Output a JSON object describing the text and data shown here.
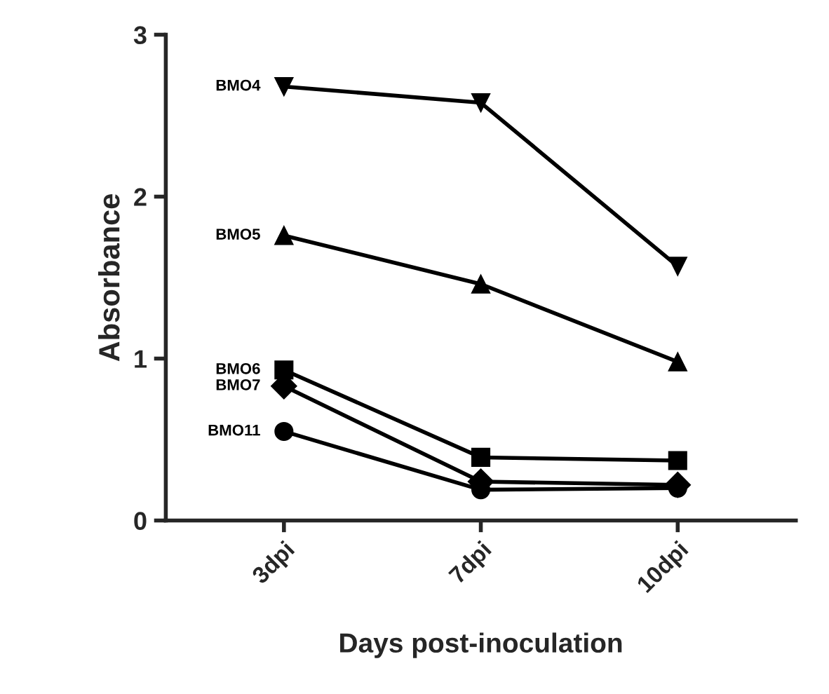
{
  "chart_data": {
    "type": "line",
    "xlabel": "Days post-inoculation",
    "ylabel": "Absorbance",
    "categories": [
      "3dpi",
      "7dpi",
      "10dpi"
    ],
    "series": [
      {
        "name": "BMO4",
        "color": "#000000",
        "marker": "triangle_down",
        "values": [
          2.68,
          2.58,
          1.57
        ]
      },
      {
        "name": "BMO5",
        "color": "#000000",
        "marker": "triangle",
        "values": [
          1.76,
          1.46,
          0.98
        ]
      },
      {
        "name": "BMO6",
        "color": "#000000",
        "marker": "square",
        "values": [
          0.93,
          0.39,
          0.37
        ]
      },
      {
        "name": "BMO7",
        "color": "#000000",
        "marker": "diamond",
        "values": [
          0.83,
          0.24,
          0.22
        ]
      },
      {
        "name": "BMO11",
        "color": "#000000",
        "marker": "circle",
        "values": [
          0.55,
          0.19,
          0.2
        ]
      }
    ],
    "ylim": [
      0,
      3
    ],
    "yticks": [
      0,
      1,
      2,
      3
    ],
    "grid": false,
    "legend": false,
    "line_style": "solid"
  }
}
